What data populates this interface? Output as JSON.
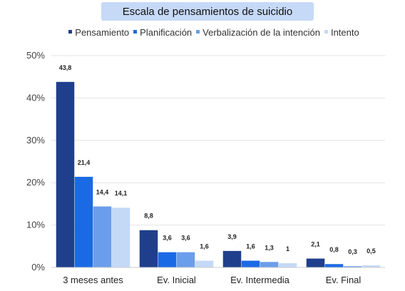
{
  "chart_data": {
    "type": "bar",
    "title": "Escala de pensamientos de suicidio",
    "categories": [
      "3 meses antes",
      "Ev. Inicial",
      "Ev. Intermedia",
      "Ev. Final"
    ],
    "series": [
      {
        "name": "Pensamiento",
        "color": "#1f3f8c",
        "values": [
          43.8,
          8.8,
          3.9,
          2.1
        ],
        "labels": [
          "43,8",
          "8,8",
          "3,9",
          "2,1"
        ]
      },
      {
        "name": "Planificación",
        "color": "#1a6ae6",
        "values": [
          21.4,
          3.6,
          1.6,
          0.8
        ],
        "labels": [
          "21,4",
          "3,6",
          "1,6",
          "0,8"
        ]
      },
      {
        "name": "Verbalización de la intención",
        "color": "#6b9eea",
        "values": [
          14.4,
          3.6,
          1.3,
          0.3
        ],
        "labels": [
          "14,4",
          "3,6",
          "1,3",
          "0,3"
        ]
      },
      {
        "name": "Intento",
        "color": "#c4d9f6",
        "values": [
          14.1,
          1.6,
          1,
          0.5
        ],
        "labels": [
          "14,1",
          "1,6",
          "1",
          "0,5"
        ]
      }
    ],
    "ylim": [
      0,
      50
    ],
    "yticks": [
      0,
      10,
      20,
      30,
      40,
      50
    ],
    "ytick_labels": [
      "0%",
      "10%",
      "20%",
      "30%",
      "40%",
      "50%"
    ],
    "grid": true,
    "legend": "top"
  }
}
